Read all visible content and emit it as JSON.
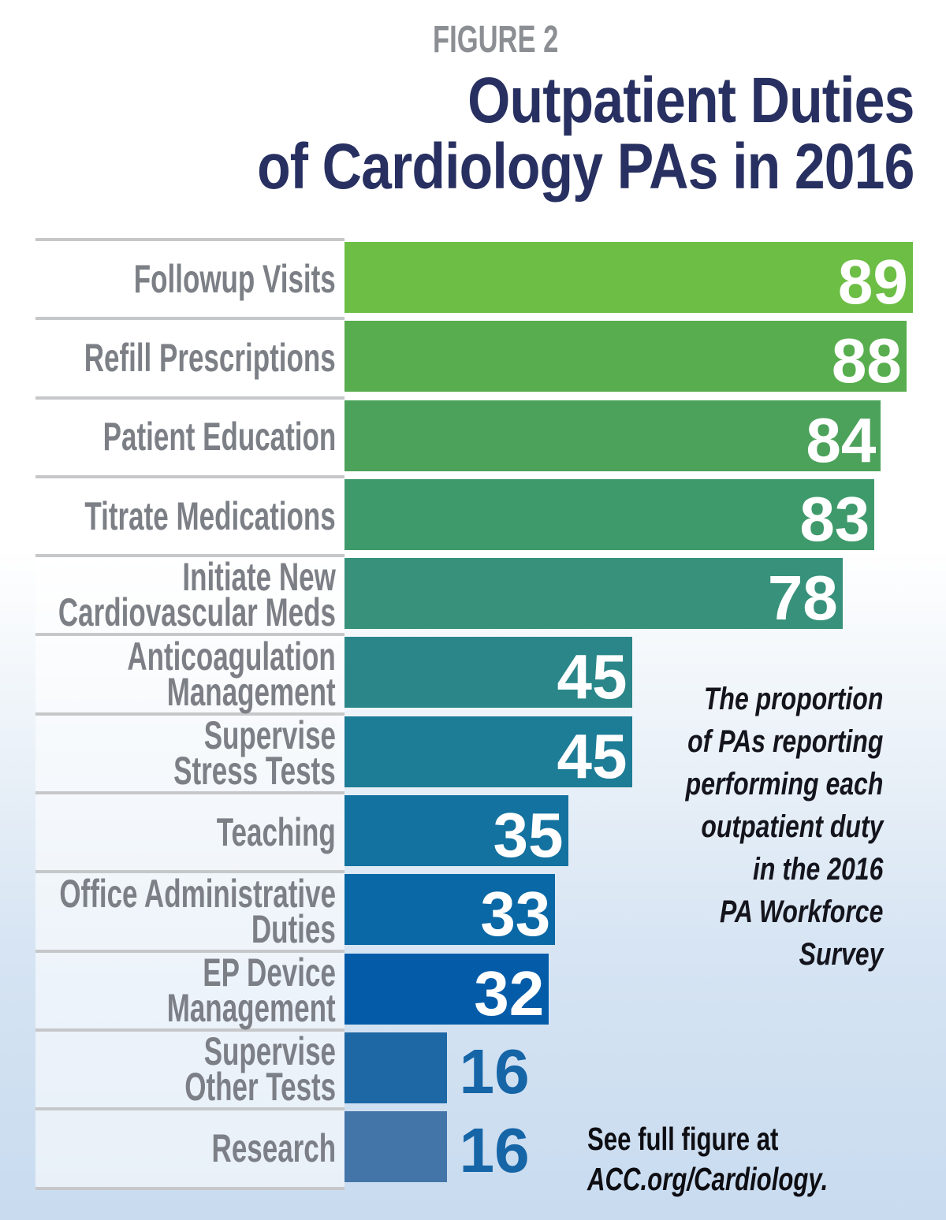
{
  "figure_label": "FIGURE 2",
  "title": {
    "line1": "Outpatient Duties",
    "line2": "of Cardiology PAs in 2016"
  },
  "chart_data": {
    "type": "bar",
    "orientation": "horizontal",
    "value_axis_max": 100,
    "grid": false,
    "legend": false,
    "categories": [
      "Followup Visits",
      "Refill Prescriptions",
      "Patient Education",
      "Titrate Medications",
      "Initiate New Cardiovascular Meds",
      "Anticoagulation Management",
      "Supervise Stress Tests",
      "Teaching",
      "Office Administrative Duties",
      "EP Device Management",
      "Supervise Other Tests",
      "Research"
    ],
    "values": [
      89,
      88,
      84,
      83,
      78,
      45,
      45,
      35,
      33,
      32,
      16,
      16
    ],
    "rows": [
      {
        "key": "followup-visits",
        "label_lines": [
          "Followup Visits"
        ],
        "value": 89,
        "color": "#6cbe45",
        "value_inside": true
      },
      {
        "key": "refill-prescriptions",
        "label_lines": [
          "Refill Prescriptions"
        ],
        "value": 88,
        "color": "#58ad4e",
        "value_inside": true
      },
      {
        "key": "patient-education",
        "label_lines": [
          "Patient Education"
        ],
        "value": 84,
        "color": "#4ca25a",
        "value_inside": true
      },
      {
        "key": "titrate-medications",
        "label_lines": [
          "Titrate Medications"
        ],
        "value": 83,
        "color": "#3f9a6b",
        "value_inside": true
      },
      {
        "key": "initiate-new-cv-meds",
        "label_lines": [
          "Initiate New",
          "Cardiovascular Meds"
        ],
        "value": 78,
        "color": "#37917b",
        "value_inside": true
      },
      {
        "key": "anticoagulation-mgmt",
        "label_lines": [
          "Anticoagulation",
          "Management"
        ],
        "value": 45,
        "color": "#2a8689",
        "value_inside": true
      },
      {
        "key": "supervise-stress-tests",
        "label_lines": [
          "Supervise",
          "Stress Tests"
        ],
        "value": 45,
        "color": "#1d7c96",
        "value_inside": true
      },
      {
        "key": "teaching",
        "label_lines": [
          "Teaching"
        ],
        "value": 35,
        "color": "#13729f",
        "value_inside": true
      },
      {
        "key": "office-admin-duties",
        "label_lines": [
          "Office Administrative",
          "Duties"
        ],
        "value": 33,
        "color": "#0968a5",
        "value_inside": true
      },
      {
        "key": "ep-device-management",
        "label_lines": [
          "EP Device",
          "Management"
        ],
        "value": 32,
        "color": "#045ca9",
        "value_inside": true
      },
      {
        "key": "supervise-other-tests",
        "label_lines": [
          "Supervise",
          "Other Tests"
        ],
        "value": 16,
        "color": "#1e68a5",
        "value_inside": false
      },
      {
        "key": "research",
        "label_lines": [
          "Research"
        ],
        "value": 16,
        "color": "#4375a9",
        "value_inside": false
      }
    ]
  },
  "annotation": {
    "lines": [
      "The proportion",
      "of PAs reporting",
      "performing each",
      "outpatient duty",
      "in the 2016",
      "PA Workforce",
      "Survey"
    ]
  },
  "footer": {
    "line1": "See full figure at",
    "line2": "ACC.org/Cardiology."
  },
  "colors": {
    "figure_label_gray": "#8b8e92",
    "title_navy": "#273060",
    "label_gray": "#7c8086",
    "divider_gray": "#c6c7c9",
    "value_inside_white": "#ffffff",
    "value_outside_blue": "#1565a7",
    "annotation_text": "#14141c",
    "footer_text": "#0d0d12",
    "background_bottom_blue": "#c8dbef"
  }
}
